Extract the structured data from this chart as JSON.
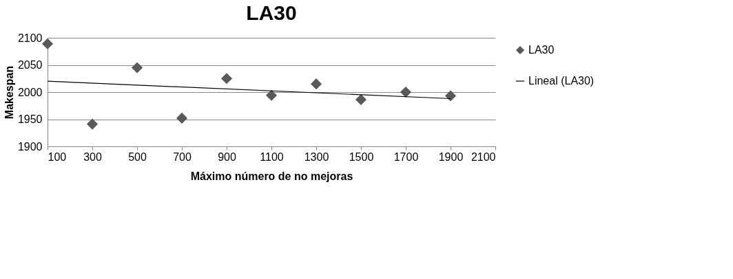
{
  "chart_data": {
    "type": "scatter",
    "title": "LA30",
    "xlabel": "Máximo número de no mejoras",
    "ylabel": "Makespan",
    "x": [
      100,
      300,
      500,
      700,
      900,
      1100,
      1300,
      1500,
      1700,
      1900
    ],
    "series": [
      {
        "name": "LA30",
        "type": "scatter",
        "color": "#595959",
        "marker": "diamond",
        "values": [
          2089,
          1941,
          2045,
          1952,
          2025,
          1994,
          2015,
          1986,
          2000,
          1993
        ]
      },
      {
        "name": "Lineal (LA30)",
        "type": "line",
        "color": "#000000",
        "line_style": "solid",
        "x": [
          100,
          1900
        ],
        "values": [
          2020,
          1988
        ]
      }
    ],
    "xlim": [
      100,
      2100
    ],
    "xticks": [
      100,
      300,
      500,
      700,
      900,
      1100,
      1300,
      1500,
      1700,
      1900,
      2100
    ],
    "ylim": [
      1900,
      2100
    ],
    "yticks": [
      1900,
      1950,
      2000,
      2050,
      2100
    ],
    "grid": "y",
    "legend": "right"
  }
}
